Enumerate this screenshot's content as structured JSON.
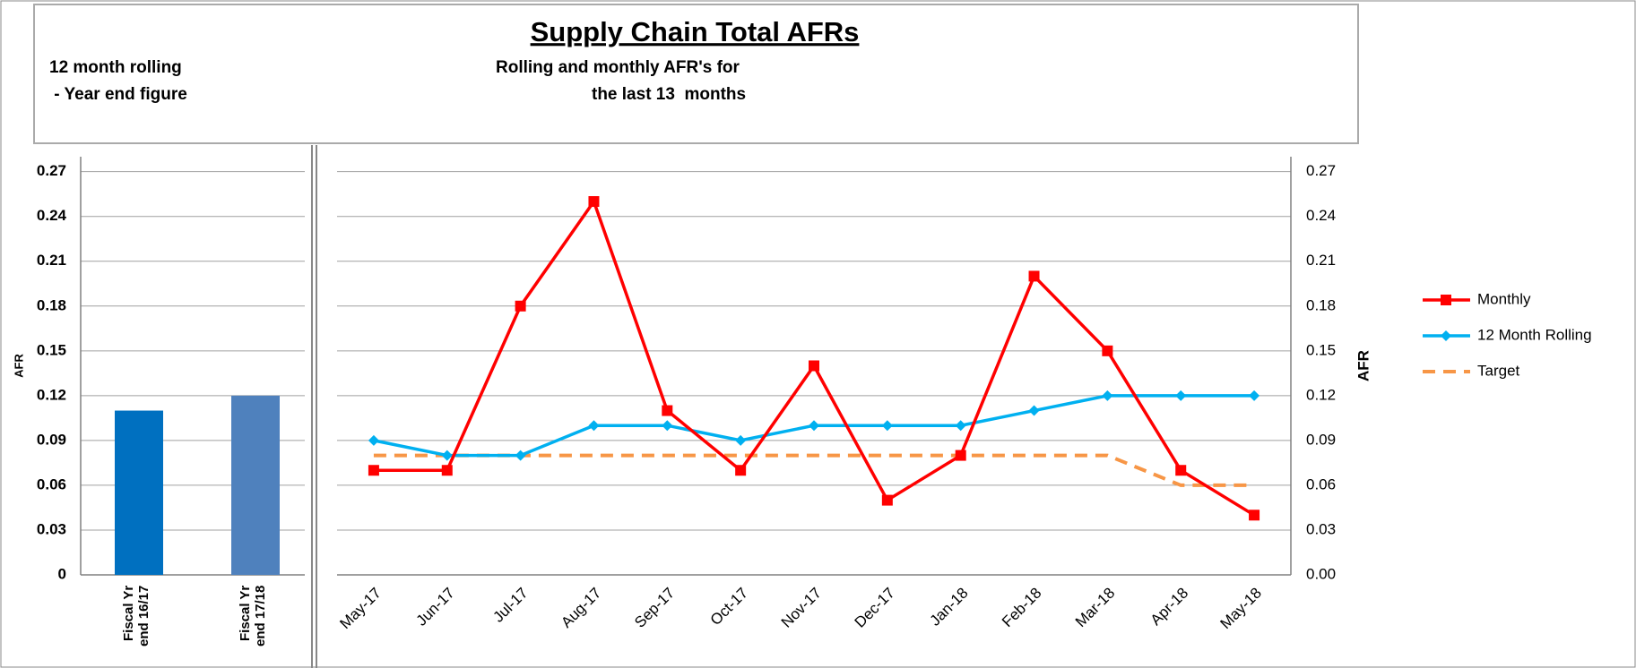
{
  "header": {
    "title": "Supply Chain Total AFRs",
    "left_note": [
      "12 month rolling",
      " - Year end figure"
    ],
    "right_note": [
      "Rolling and monthly AFR's for",
      "the last 13  months"
    ]
  },
  "chart_data": [
    {
      "type": "bar",
      "y_label": "AFR",
      "categories": [
        "Fiscal Yr end 16/17",
        "Fiscal Yr end 17/18"
      ],
      "values": [
        0.11,
        0.12
      ],
      "colors": [
        "#0070c0",
        "#4f81bd"
      ],
      "ylim": [
        0,
        0.28
      ],
      "yticks": [
        0,
        0.03,
        0.06,
        0.09,
        0.12,
        0.15,
        0.18,
        0.21,
        0.24,
        0.27
      ],
      "grid": true
    },
    {
      "type": "line",
      "y2_label": "AFR",
      "legend": "right",
      "grid": true,
      "categories": [
        "May-17",
        "Jun-17",
        "Jul-17",
        "Aug-17",
        "Sep-17",
        "Oct-17",
        "Nov-17",
        "Dec-17",
        "Jan-18",
        "Feb-18",
        "Mar-18",
        "Apr-18",
        "May-18"
      ],
      "y2lim": [
        0,
        0.28
      ],
      "y2ticks": [
        {
          "value": 0,
          "label": "0.00"
        },
        0.03,
        0.06,
        0.09,
        0.12,
        0.15,
        0.18,
        0.21,
        0.24,
        0.27
      ],
      "series": [
        {
          "name": "Monthly",
          "color": "#ff0000",
          "marker": "square",
          "axis": "y2",
          "values": [
            0.07,
            0.07,
            0.18,
            0.25,
            0.11,
            0.07,
            0.14,
            0.05,
            0.08,
            0.2,
            0.15,
            0.07,
            0.04
          ]
        },
        {
          "name": "12 Month Rolling",
          "color": "#00b0f0",
          "marker": "diamond",
          "axis": "y2",
          "values": [
            0.09,
            0.08,
            0.08,
            0.1,
            0.1,
            0.09,
            0.1,
            0.1,
            0.1,
            0.11,
            0.12,
            0.12,
            0.12
          ]
        },
        {
          "name": "Target",
          "color": "#f79646",
          "dash": true,
          "axis": "y2",
          "values": [
            0.08,
            0.08,
            0.08,
            0.08,
            0.08,
            0.08,
            0.08,
            0.08,
            0.08,
            0.08,
            0.08,
            0.06,
            0.06
          ]
        }
      ]
    }
  ]
}
